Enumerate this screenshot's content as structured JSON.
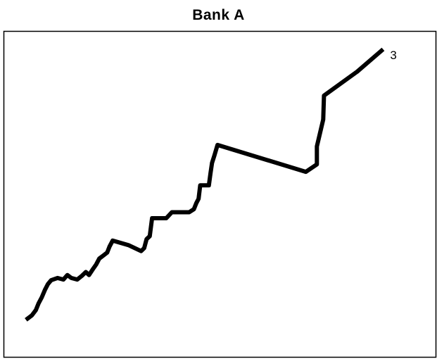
{
  "chart_data": {
    "type": "line",
    "title": "Bank A",
    "xlabel": "",
    "ylabel": "",
    "grid": false,
    "legend": "none",
    "series": [
      {
        "end_label": "3",
        "color": "#000000",
        "points": [
          [
            0.0,
            0.0
          ],
          [
            1.5,
            0.6
          ],
          [
            2.5,
            1.3
          ],
          [
            3.2,
            2.2
          ],
          [
            4.0,
            3.0
          ],
          [
            4.8,
            4.0
          ],
          [
            5.6,
            4.8
          ],
          [
            6.4,
            5.3
          ],
          [
            8.0,
            5.6
          ],
          [
            9.5,
            5.4
          ],
          [
            10.5,
            6.0
          ],
          [
            11.5,
            5.6
          ],
          [
            13.0,
            5.4
          ],
          [
            14.2,
            5.9
          ],
          [
            15.2,
            6.4
          ],
          [
            16.0,
            6.0
          ],
          [
            17.0,
            6.8
          ],
          [
            17.8,
            7.4
          ],
          [
            18.6,
            8.2
          ],
          [
            19.6,
            8.6
          ],
          [
            20.6,
            9.0
          ],
          [
            21.2,
            9.8
          ],
          [
            22.0,
            10.6
          ],
          [
            26.0,
            10.0
          ],
          [
            29.2,
            9.2
          ],
          [
            30.0,
            9.6
          ],
          [
            30.6,
            10.8
          ],
          [
            31.4,
            11.2
          ],
          [
            32.0,
            13.6
          ],
          [
            35.6,
            13.6
          ],
          [
            37.0,
            14.4
          ],
          [
            41.4,
            14.4
          ],
          [
            42.6,
            14.8
          ],
          [
            43.2,
            15.6
          ],
          [
            43.8,
            16.2
          ],
          [
            44.2,
            18.0
          ],
          [
            45.6,
            18.0
          ],
          [
            46.4,
            18.0
          ],
          [
            46.8,
            19.6
          ],
          [
            47.2,
            21.0
          ],
          [
            47.8,
            22.0
          ],
          [
            48.6,
            23.4
          ],
          [
            71.0,
            19.8
          ],
          [
            73.8,
            20.8
          ],
          [
            73.8,
            23.2
          ],
          [
            75.4,
            26.8
          ],
          [
            75.6,
            30.0
          ],
          [
            84.0,
            33.2
          ],
          [
            90.6,
            36.2
          ]
        ]
      }
    ],
    "xlim": [
      -5.6,
      104.0
    ],
    "ylim": [
      -5.0,
      38.6
    ]
  }
}
